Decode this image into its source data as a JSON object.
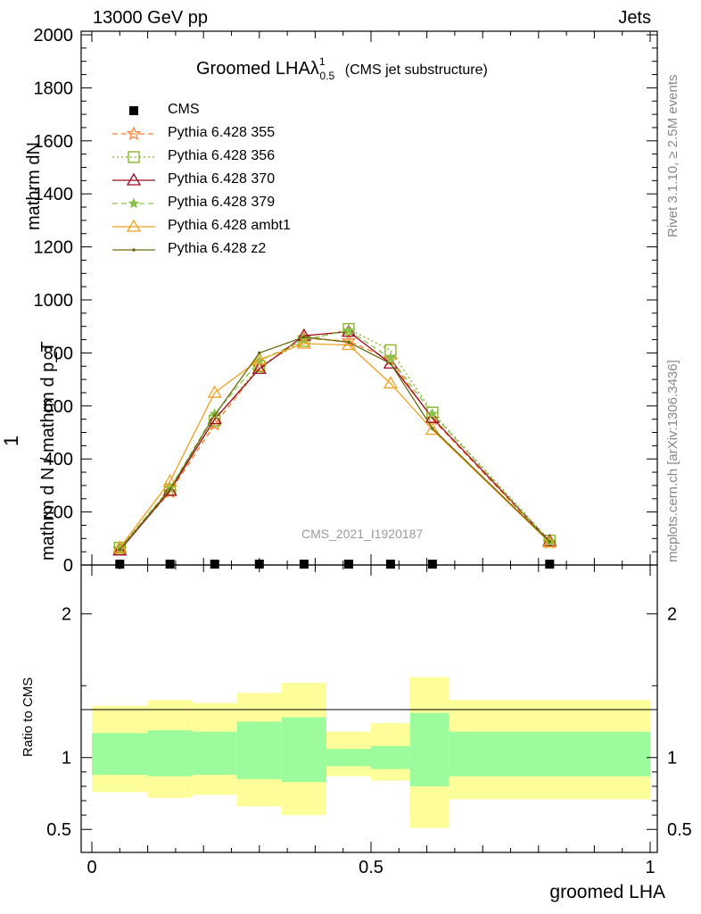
{
  "header": {
    "left": "13000 GeV pp",
    "right": "Jets"
  },
  "side_text": {
    "rivet": "Rivet 3.1.10, ≥ 2.5M events",
    "mcplots": "mcplots.cern.ch [arXiv:1306.3436]"
  },
  "watermark": "CMS_2021_I1920187",
  "y_labels": {
    "top": "mathrm d^{2}N / mathrm d p_{T} mathrm d lambda",
    "top_display": "mathrm dN",
    "sub_display": "mathrm d p_T mathrm d lambda",
    "one": "1",
    "bottom": "mathrm d N / mathrm d p_T",
    "bottom_display": "mathrm d N / mathrm d p_T",
    "prefix": "mathrm d N / mathrm d p"
  },
  "ratio_label": "Ratio to CMS",
  "colors": {
    "cms": "#000000",
    "p355": "#ff7f2a",
    "p356": "#7fb217",
    "p370": "#9b0a22",
    "p379": "#8bc34a",
    "ambt1": "#f0a020",
    "z2": "#6b6b10",
    "band_inner": "#9cfb9c",
    "band_outer": "#fdfd9a"
  },
  "chart_data": [
    {
      "type": "line",
      "title": "Groomed LHAλ",
      "title_sup": "1",
      "title_sub": "0.5",
      "title_suffix": "(CMS jet substructure)",
      "xlabel": "groomed LHA",
      "xlim": [
        0,
        1
      ],
      "ylim": [
        0,
        2000
      ],
      "yticks": [
        0,
        200,
        400,
        600,
        800,
        1000,
        1200,
        1400,
        1600,
        1800,
        2000
      ],
      "x": [
        0.05,
        0.14,
        0.22,
        0.3,
        0.38,
        0.46,
        0.535,
        0.61,
        0.82
      ],
      "series": [
        {
          "name": "CMS",
          "marker": "square",
          "values": [
            0,
            0,
            0,
            0,
            0,
            0,
            0,
            0,
            0
          ]
        },
        {
          "name": "Pythia 6.428 355",
          "marker": "star",
          "dash": "6,4",
          "values": [
            60,
            275,
            530,
            745,
            855,
            845,
            775,
            550,
            85
          ]
        },
        {
          "name": "Pythia 6.428 356",
          "marker": "square-open",
          "dash": "2,3",
          "values": [
            65,
            285,
            545,
            750,
            845,
            890,
            810,
            575,
            92
          ]
        },
        {
          "name": "Pythia 6.428 370",
          "marker": "triangle",
          "dash": "",
          "values": [
            55,
            280,
            550,
            740,
            865,
            880,
            760,
            555,
            90
          ]
        },
        {
          "name": "Pythia 6.428 379",
          "marker": "star-small",
          "dash": "6,4",
          "values": [
            62,
            290,
            570,
            770,
            850,
            885,
            780,
            570,
            88
          ]
        },
        {
          "name": "Pythia 6.428 ambt1",
          "marker": "triangle",
          "dash": "",
          "values": [
            65,
            315,
            650,
            775,
            835,
            830,
            685,
            510,
            85
          ]
        },
        {
          "name": "Pythia 6.428 z2",
          "marker": "dot",
          "dash": "",
          "values": [
            58,
            285,
            565,
            800,
            860,
            840,
            760,
            515,
            88
          ]
        }
      ]
    },
    {
      "type": "area",
      "ylabel": "Ratio to CMS",
      "xlim": [
        0,
        1
      ],
      "ylim": [
        0.34,
        2.34
      ],
      "yticks": [
        0.5,
        1,
        2
      ],
      "bins": [
        {
          "lo": 0.0,
          "hi": 0.1,
          "inner": [
            0.88,
            1.17
          ],
          "outer": [
            0.76,
            1.36
          ]
        },
        {
          "lo": 0.1,
          "hi": 0.18,
          "inner": [
            0.87,
            1.19
          ],
          "outer": [
            0.72,
            1.4
          ]
        },
        {
          "lo": 0.18,
          "hi": 0.26,
          "inner": [
            0.88,
            1.18
          ],
          "outer": [
            0.74,
            1.38
          ]
        },
        {
          "lo": 0.26,
          "hi": 0.34,
          "inner": [
            0.85,
            1.25
          ],
          "outer": [
            0.66,
            1.45
          ]
        },
        {
          "lo": 0.34,
          "hi": 0.42,
          "inner": [
            0.83,
            1.28
          ],
          "outer": [
            0.6,
            1.52
          ]
        },
        {
          "lo": 0.42,
          "hi": 0.5,
          "inner": [
            0.94,
            1.06
          ],
          "outer": [
            0.87,
            1.18
          ]
        },
        {
          "lo": 0.5,
          "hi": 0.57,
          "inner": [
            0.92,
            1.08
          ],
          "outer": [
            0.84,
            1.24
          ]
        },
        {
          "lo": 0.57,
          "hi": 0.64,
          "inner": [
            0.8,
            1.31
          ],
          "outer": [
            0.51,
            1.56
          ]
        },
        {
          "lo": 0.64,
          "hi": 1.0,
          "inner": [
            0.87,
            1.18
          ],
          "outer": [
            0.71,
            1.4
          ]
        }
      ]
    }
  ]
}
